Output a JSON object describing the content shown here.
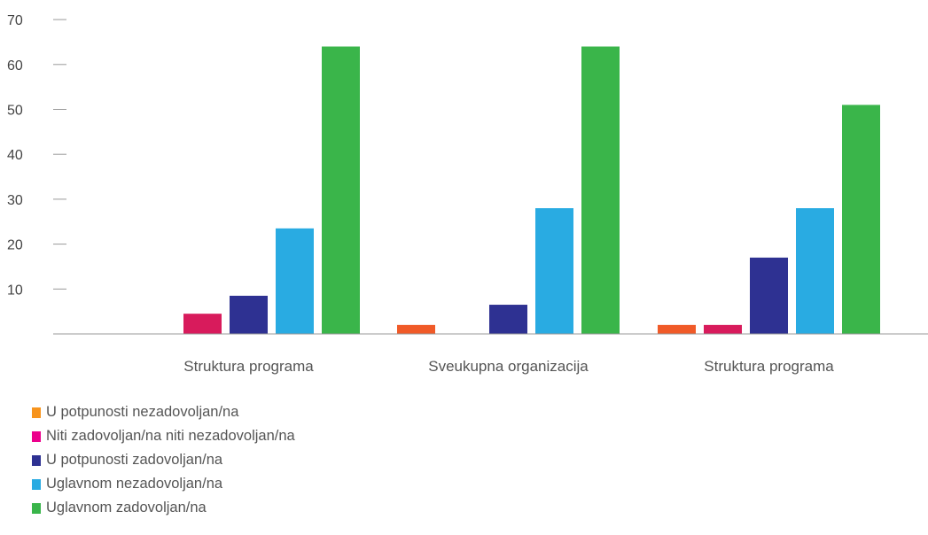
{
  "chart_data": {
    "type": "bar",
    "categories": [
      "Struktura programa",
      "Sveukupna organizacija",
      "Struktura programa"
    ],
    "series": [
      {
        "name": "U potpunosti nezadovoljan/na",
        "color": "#f05a28",
        "values": [
          0,
          2,
          2
        ]
      },
      {
        "name": "Niti zadovoljan/na niti nezadovoljan/na",
        "color": "#d81b5c",
        "values": [
          4.5,
          0,
          2
        ]
      },
      {
        "name": "U potpunosti zadovoljan/na",
        "color": "#2e3192",
        "values": [
          8.5,
          6.5,
          17
        ]
      },
      {
        "name": "Uglavnom nezadovoljan/na",
        "color": "#29abe2",
        "values": [
          23.5,
          28,
          28
        ]
      },
      {
        "name": "Uglavnom zadovoljan/na",
        "color": "#3ab54a",
        "values": [
          64,
          64,
          51
        ]
      }
    ],
    "yticks": [
      "10",
      "20",
      "30",
      "40",
      "50",
      "60",
      "70"
    ],
    "ylim": [
      0,
      70
    ],
    "legend_position": "bottom-left",
    "legend_swatch_colors": [
      "#f7941d",
      "#ec008c",
      "#2e3192",
      "#29abe2",
      "#39b54a"
    ]
  }
}
